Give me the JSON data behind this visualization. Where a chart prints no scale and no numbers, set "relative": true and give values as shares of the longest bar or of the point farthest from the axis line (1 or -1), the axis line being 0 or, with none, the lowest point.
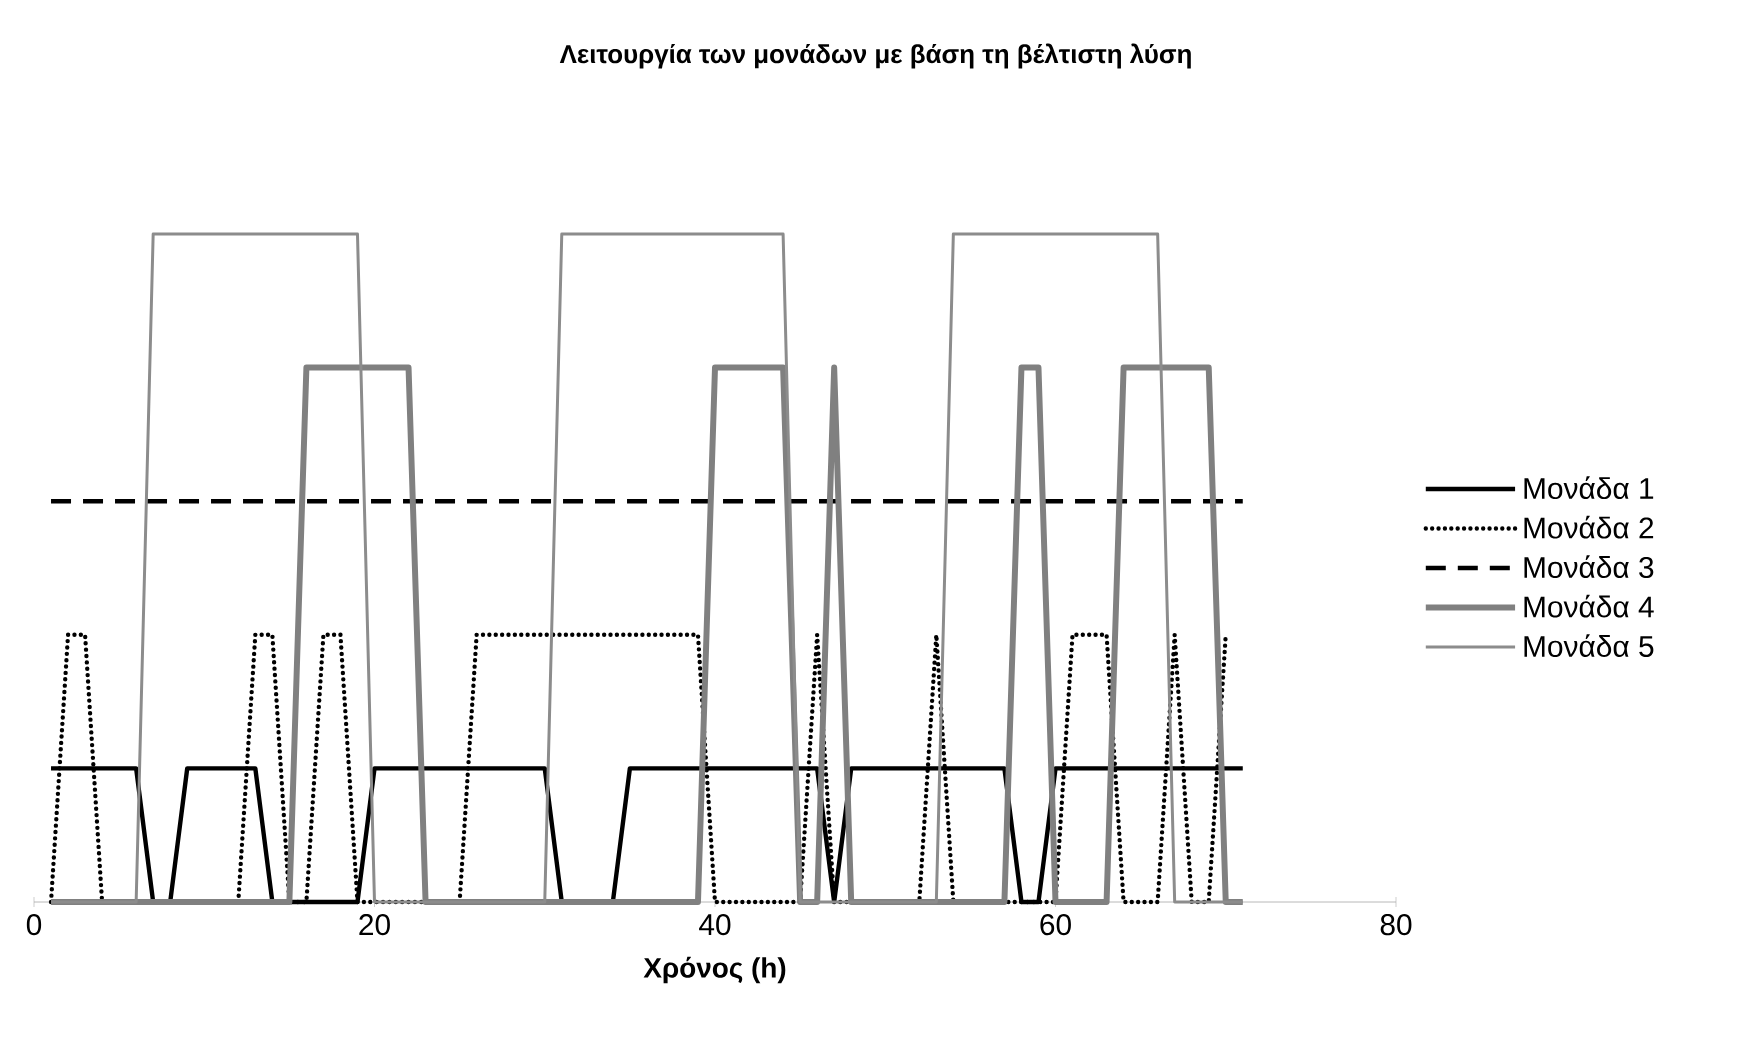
{
  "chart_data": {
    "type": "line",
    "title": "Λειτουργία των μονάδων με βάση τη βέλτιστη λύση",
    "xlabel": "Χρόνος (h)",
    "relative": true,
    "xlim": [
      0,
      80
    ],
    "xticks": [
      0,
      20,
      40,
      60,
      80
    ],
    "grid": false,
    "legend": "right",
    "marker": "none",
    "series": [
      {
        "name": "Μονάδα 1",
        "color": "#000000",
        "line_style": "solid",
        "x": [
          1,
          6,
          7,
          8,
          9,
          13,
          14,
          19,
          20,
          30,
          31,
          34,
          35,
          46,
          47,
          48,
          57,
          58,
          59,
          60,
          71
        ],
        "values": [
          0.2,
          0.2,
          0,
          0,
          0.2,
          0.2,
          0,
          0,
          0.2,
          0.2,
          0,
          0,
          0.2,
          0.2,
          0,
          0.2,
          0.2,
          0,
          0,
          0.2,
          0.2
        ]
      },
      {
        "name": "Μονάδα 2",
        "color": "#000000",
        "line_style": "dotted",
        "x": [
          1,
          2,
          3,
          4,
          12,
          13,
          14,
          15,
          16,
          17,
          18,
          19,
          25,
          26,
          39,
          40,
          45,
          46,
          47,
          52,
          53,
          54,
          60,
          61,
          63,
          64,
          66,
          67,
          68,
          69,
          70
        ],
        "values": [
          0,
          0.4,
          0.4,
          0,
          0,
          0.4,
          0.4,
          0,
          0,
          0.4,
          0.4,
          0,
          0,
          0.4,
          0.4,
          0,
          0,
          0.4,
          0,
          0,
          0.4,
          0,
          0,
          0.4,
          0.4,
          0,
          0,
          0.4,
          0,
          0,
          0.4
        ]
      },
      {
        "name": "Μονάδα 3",
        "color": "#000000",
        "line_style": "dashed",
        "x": [
          1,
          71
        ],
        "values": [
          0.6,
          0.6
        ]
      },
      {
        "name": "Μονάδα 4",
        "color": "#808080",
        "line_style": "solid",
        "x": [
          1,
          15,
          16,
          22,
          23,
          39,
          40,
          44,
          45,
          46,
          47,
          48,
          57,
          58,
          59,
          60,
          63,
          64,
          69,
          70,
          71
        ],
        "values": [
          0,
          0,
          0.8,
          0.8,
          0,
          0,
          0.8,
          0.8,
          0,
          0,
          0.8,
          0,
          0,
          0.8,
          0.8,
          0,
          0,
          0.8,
          0.8,
          0,
          0
        ]
      },
      {
        "name": "Μονάδα 5",
        "color": "#8c8c8c",
        "line_style": "solid",
        "x": [
          1,
          6,
          7,
          19,
          20,
          30,
          31,
          44,
          45,
          53,
          54,
          66,
          67,
          71
        ],
        "values": [
          0,
          0,
          1,
          1,
          0,
          0,
          1,
          1,
          0,
          0,
          1,
          1,
          0,
          0
        ]
      }
    ]
  }
}
